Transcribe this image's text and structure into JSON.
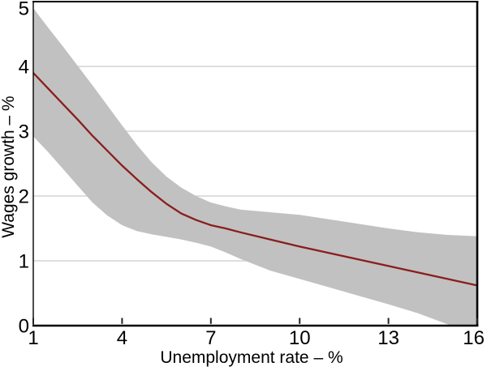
{
  "chart_data": {
    "type": "line",
    "xlabel": "Unemployment rate – %",
    "ylabel": "Wages growth – %",
    "xlim": [
      1,
      16
    ],
    "ylim": [
      0,
      5
    ],
    "x_ticks": [
      1,
      4,
      7,
      10,
      13,
      16
    ],
    "x_tick_labels": [
      "1",
      "4",
      "7",
      "10",
      "13",
      "16"
    ],
    "y_ticks": [
      0,
      1,
      2,
      3,
      4,
      5
    ],
    "y_tick_labels": [
      "0",
      "1",
      "2",
      "3",
      "4",
      "5"
    ],
    "y_gridlines": [
      1,
      2,
      3,
      4
    ],
    "grid": "horizontal-only",
    "legend": "none",
    "x": [
      1,
      1.5,
      2,
      2.5,
      3,
      3.5,
      4,
      4.5,
      5,
      5.5,
      6,
      6.5,
      7,
      7.5,
      8,
      9,
      10,
      11,
      12,
      13,
      14,
      15,
      16
    ],
    "series": [
      {
        "name": "wages-growth-mean",
        "kind": "line",
        "values": [
          3.9,
          3.66,
          3.42,
          3.18,
          2.93,
          2.7,
          2.47,
          2.26,
          2.06,
          1.88,
          1.73,
          1.63,
          1.55,
          1.5,
          1.44,
          1.33,
          1.22,
          1.12,
          1.02,
          0.92,
          0.82,
          0.72,
          0.62
        ]
      },
      {
        "name": "confidence-band",
        "kind": "band",
        "upper": [
          4.9,
          4.6,
          4.31,
          4.01,
          3.71,
          3.4,
          3.09,
          2.79,
          2.52,
          2.3,
          2.13,
          2.0,
          1.9,
          1.84,
          1.79,
          1.75,
          1.71,
          1.64,
          1.57,
          1.5,
          1.44,
          1.4,
          1.38
        ],
        "lower": [
          2.92,
          2.68,
          2.42,
          2.16,
          1.9,
          1.7,
          1.55,
          1.46,
          1.41,
          1.37,
          1.33,
          1.28,
          1.22,
          1.13,
          1.03,
          0.85,
          0.72,
          0.59,
          0.46,
          0.33,
          0.19,
          0.02,
          -0.18
        ]
      }
    ],
    "colors": {
      "line": "#8b1d1d",
      "band": "#c1c1c1",
      "grid": "#d4d4d4",
      "axis": "#000000",
      "tick": "#222222",
      "text": "#000000",
      "background": "#ffffff"
    }
  }
}
